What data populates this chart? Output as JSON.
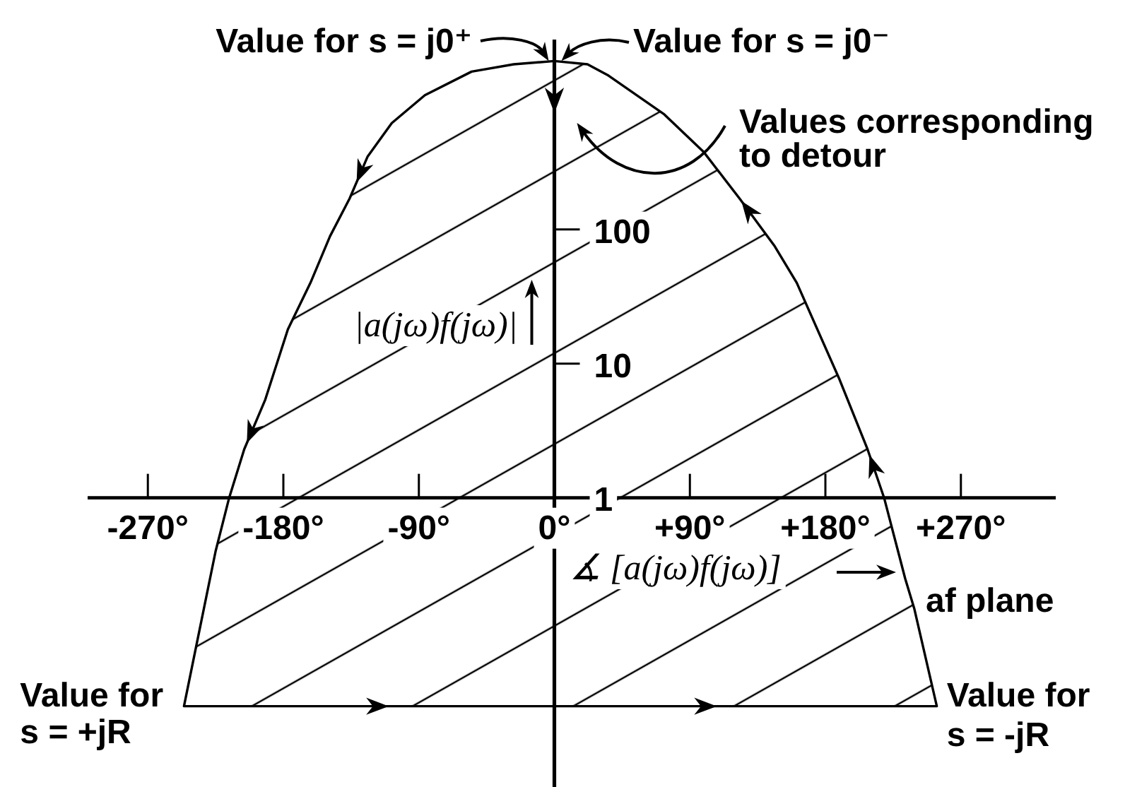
{
  "chart_data": {
    "type": "area",
    "xlabel": "∡ [a(jω)f(jω)]",
    "ylabel": "|a(jω)f(jω)|",
    "annotations": [
      {
        "text": "Value for s = j0⁺",
        "x": 0,
        "y": 1800
      },
      {
        "text": "Value for s = j0⁻",
        "x": 0,
        "y": 1800
      },
      "Values corresponding to detour",
      "af plane",
      {
        "text": "Value for s = +jR",
        "x": -246,
        "y": 0.028
      },
      {
        "text": "Value for s = -jR",
        "x": 254,
        "y": 0.028
      }
    ],
    "x": [
      0,
      -27,
      -55,
      -86,
      -108,
      -124,
      -136,
      -149,
      -162,
      -177,
      -192,
      -206,
      -216,
      -225,
      -239,
      -246,
      254,
      239,
      233,
      219,
      208,
      189,
      161,
      146,
      123,
      99,
      73,
      36,
      22,
      0
    ],
    "series": [
      {
        "color": "#000000",
        "values": [
          1800,
          1700,
          1500,
          1000,
          620,
          350,
          170,
          89,
          40,
          18,
          5.4,
          2.3,
          1,
          0.4,
          0.068,
          0.028,
          0.028,
          0.15,
          0.25,
          1,
          2.3,
          7.8,
          40,
          76,
          170,
          380,
          720,
          1400,
          1700,
          1800
        ]
      }
    ],
    "xlim": [
      -310,
      333
    ],
    "ylim": [
      0.007,
      2600
    ],
    "xticks": [
      {
        "value": -270,
        "label": "-270°"
      },
      {
        "value": -180,
        "label": "-180°"
      },
      {
        "value": -90,
        "label": "-90°"
      },
      {
        "value": 0,
        "label": "0°"
      },
      {
        "value": 90,
        "label": "+90°"
      },
      {
        "value": 180,
        "label": "+180°"
      },
      {
        "value": 270,
        "label": "+270°"
      }
    ],
    "yticks": [
      1,
      10,
      100
    ],
    "log": "y",
    "line_style": "solid"
  }
}
